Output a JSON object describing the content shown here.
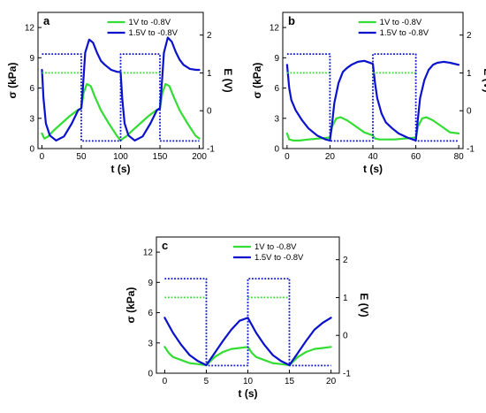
{
  "chart_data": [
    {
      "type": "line",
      "panel_label": "a",
      "xlabel": "t (s)",
      "ylabel": "σ (kPa)",
      "y2label": "E (V)",
      "xlim": [
        -5,
        205
      ],
      "ylim": [
        0,
        13.5
      ],
      "y2lim": [
        -1,
        2.6
      ],
      "xticks": [
        0,
        50,
        100,
        150,
        200
      ],
      "yticks": [
        0,
        3,
        6,
        9,
        12
      ],
      "y2ticks": [
        -1,
        0,
        1,
        2
      ],
      "legend_position": "top-right",
      "series": [
        {
          "name": "1V to -0.8V",
          "color": "#33dd33",
          "axis": "left",
          "x": [
            0,
            3,
            8,
            15,
            25,
            35,
            45,
            50,
            53,
            57,
            62,
            67,
            75,
            85,
            95,
            100,
            103,
            107,
            115,
            125,
            135,
            145,
            150,
            153,
            157,
            162,
            167,
            175,
            185,
            195,
            200
          ],
          "y": [
            1.5,
            1.0,
            1.2,
            1.8,
            2.5,
            3.2,
            3.8,
            4.0,
            5.5,
            6.4,
            6.2,
            5.2,
            3.8,
            2.5,
            1.3,
            0.8,
            1.0,
            1.2,
            1.8,
            2.5,
            3.2,
            3.8,
            4.0,
            5.5,
            6.4,
            6.2,
            5.2,
            3.8,
            2.5,
            1.3,
            1.0
          ]
        },
        {
          "name": "1.5V to -0.8V",
          "color": "#0b12cc",
          "axis": "left",
          "x": [
            0,
            2,
            5,
            10,
            18,
            28,
            38,
            46,
            50,
            52,
            55,
            60,
            65,
            70,
            75,
            80,
            88,
            96,
            100,
            102,
            105,
            110,
            118,
            128,
            138,
            146,
            150,
            152,
            155,
            160,
            165,
            170,
            175,
            180,
            188,
            196,
            200
          ],
          "y": [
            7.8,
            5.0,
            2.5,
            1.3,
            0.8,
            1.2,
            2.5,
            3.8,
            4.0,
            6.0,
            9.5,
            10.8,
            10.5,
            9.5,
            8.7,
            8.3,
            7.8,
            7.6,
            7.6,
            5.0,
            2.5,
            1.3,
            0.8,
            1.2,
            2.5,
            3.8,
            4.0,
            6.0,
            9.5,
            11.0,
            10.6,
            9.6,
            8.8,
            8.3,
            7.9,
            7.8,
            7.8
          ]
        },
        {
          "name": "",
          "color": "#33dd33",
          "axis": "right",
          "style": "dotted",
          "x": [
            0,
            50,
            50,
            100,
            100,
            150,
            150,
            200
          ],
          "y": [
            1,
            1,
            null,
            null,
            1,
            1,
            null,
            null
          ]
        },
        {
          "name": "",
          "color": "#0b12cc",
          "axis": "right",
          "style": "dotted",
          "x": [
            0,
            50,
            50,
            100,
            100,
            150,
            150,
            200
          ],
          "y": [
            1.5,
            1.5,
            -0.8,
            -0.8,
            1.5,
            1.5,
            -0.8,
            -0.8
          ]
        }
      ]
    },
    {
      "type": "line",
      "panel_label": "b",
      "xlabel": "t (s)",
      "ylabel": "σ (kPa)",
      "y2label": "E (V)",
      "xlim": [
        -2,
        82
      ],
      "ylim": [
        0,
        13.5
      ],
      "y2lim": [
        -1,
        2.6
      ],
      "xticks": [
        0,
        20,
        40,
        60,
        80
      ],
      "yticks": [
        0,
        3,
        6,
        9,
        12
      ],
      "y2ticks": [
        -1,
        0,
        1,
        2
      ],
      "legend_position": "top-right",
      "series": [
        {
          "name": "1V to -0.8V",
          "color": "#33dd33",
          "axis": "left",
          "x": [
            0,
            1,
            3,
            6,
            10,
            15,
            20,
            21,
            23,
            25,
            28,
            32,
            36,
            40,
            41,
            43,
            46,
            50,
            55,
            60,
            61,
            63,
            65,
            68,
            72,
            76,
            80
          ],
          "y": [
            1.5,
            0.9,
            0.8,
            0.8,
            0.9,
            1.0,
            1.1,
            2.2,
            3.0,
            3.1,
            2.8,
            2.2,
            1.6,
            1.3,
            1.0,
            0.9,
            0.9,
            0.9,
            1.0,
            1.1,
            2.2,
            3.0,
            3.1,
            2.8,
            2.2,
            1.6,
            1.5
          ]
        },
        {
          "name": "1.5V to -0.8V",
          "color": "#0b12cc",
          "axis": "left",
          "x": [
            0,
            1,
            2,
            4,
            7,
            10,
            14,
            18,
            20,
            21,
            22,
            24,
            26,
            28,
            30,
            33,
            36,
            40,
            41,
            42,
            44,
            46,
            49,
            52,
            56,
            60,
            61,
            62,
            64,
            66,
            68,
            70,
            73,
            76,
            80
          ],
          "y": [
            8.3,
            6.0,
            4.8,
            3.8,
            2.8,
            2.0,
            1.3,
            0.9,
            0.8,
            2.5,
            4.5,
            6.5,
            7.6,
            8.0,
            8.3,
            8.6,
            8.7,
            8.4,
            6.5,
            5.0,
            3.5,
            2.6,
            2.0,
            1.5,
            1.1,
            0.8,
            3.0,
            5.0,
            6.8,
            7.8,
            8.3,
            8.5,
            8.6,
            8.5,
            8.3
          ]
        },
        {
          "name": "",
          "color": "#33dd33",
          "axis": "right",
          "style": "dotted",
          "x": [
            0,
            20,
            20,
            40,
            40,
            60,
            60,
            80
          ],
          "y": [
            1,
            1,
            null,
            null,
            1,
            1,
            null,
            null
          ]
        },
        {
          "name": "",
          "color": "#0b12cc",
          "axis": "right",
          "style": "dotted",
          "x": [
            0,
            20,
            20,
            40,
            40,
            60,
            60,
            80
          ],
          "y": [
            1.5,
            1.5,
            -0.8,
            -0.8,
            1.5,
            1.5,
            -0.8,
            -0.8
          ]
        }
      ]
    },
    {
      "type": "line",
      "panel_label": "c",
      "xlabel": "t (s)",
      "ylabel": "σ (kPa)",
      "y2label": "E (V)",
      "xlim": [
        -1,
        21
      ],
      "ylim": [
        0,
        13.5
      ],
      "y2lim": [
        -1,
        2.6
      ],
      "xticks": [
        0,
        5,
        10,
        15,
        20
      ],
      "yticks": [
        0,
        3,
        6,
        9,
        12
      ],
      "y2ticks": [
        -1,
        0,
        1,
        2
      ],
      "legend_position": "top-right",
      "series": [
        {
          "name": "1V to -0.8V",
          "color": "#33dd33",
          "axis": "left",
          "x": [
            0,
            0.5,
            1,
            2,
            3,
            4,
            5,
            5.5,
            6,
            7,
            8,
            9,
            10,
            10.5,
            11,
            12,
            13,
            14,
            15,
            15.5,
            16,
            17,
            18,
            19,
            20
          ],
          "y": [
            2.6,
            2.0,
            1.6,
            1.3,
            1.0,
            0.9,
            0.8,
            1.2,
            1.6,
            2.1,
            2.4,
            2.5,
            2.6,
            2.0,
            1.6,
            1.3,
            1.0,
            0.9,
            0.8,
            1.2,
            1.6,
            2.1,
            2.4,
            2.5,
            2.6
          ]
        },
        {
          "name": "1.5V to -0.8V",
          "color": "#0b12cc",
          "axis": "left",
          "x": [
            0,
            1,
            2,
            3,
            4,
            5,
            6,
            7,
            8,
            9,
            10,
            11,
            12,
            13,
            14,
            15,
            16,
            17,
            18,
            19,
            20
          ],
          "y": [
            5.5,
            4.0,
            2.8,
            1.8,
            1.2,
            0.8,
            2.0,
            3.2,
            4.3,
            5.2,
            5.5,
            4.0,
            2.8,
            1.8,
            1.2,
            0.8,
            2.0,
            3.2,
            4.3,
            5.0,
            5.5
          ]
        },
        {
          "name": "",
          "color": "#33dd33",
          "axis": "right",
          "style": "dotted",
          "x": [
            0,
            5,
            5,
            10,
            10,
            15,
            15,
            20
          ],
          "y": [
            1,
            1,
            null,
            null,
            1,
            1,
            null,
            null
          ]
        },
        {
          "name": "",
          "color": "#0b12cc",
          "axis": "right",
          "style": "dotted",
          "x": [
            0,
            5,
            5,
            10,
            10,
            15,
            15,
            20
          ],
          "y": [
            1.5,
            1.5,
            -0.8,
            -0.8,
            1.5,
            1.5,
            -0.8,
            -0.8
          ]
        }
      ]
    }
  ]
}
